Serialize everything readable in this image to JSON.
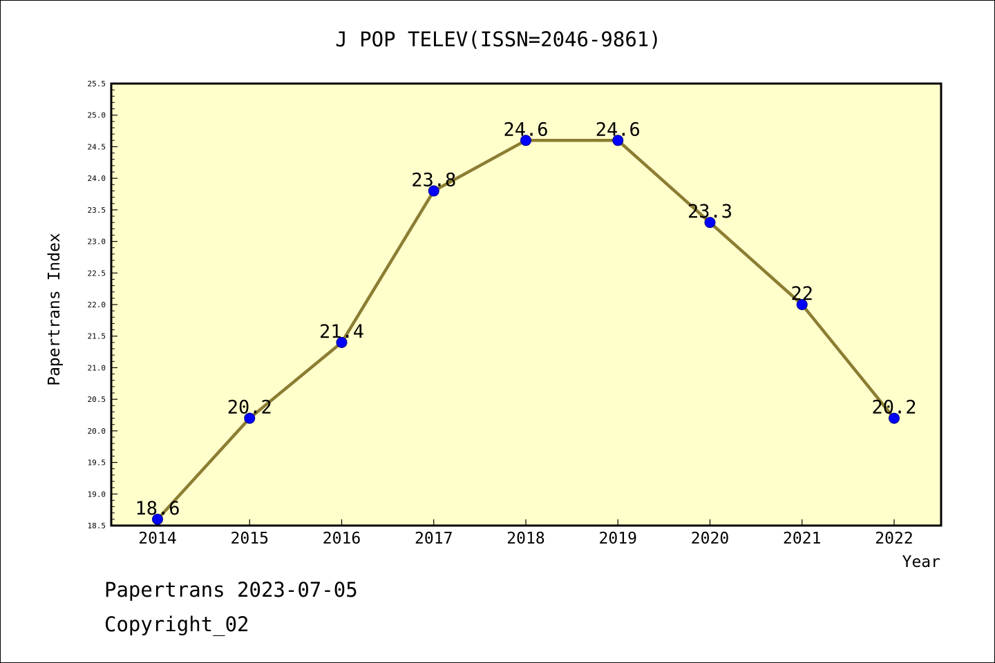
{
  "chart_data": {
    "type": "line",
    "title": "J POP TELEV(ISSN=2046-9861)",
    "xlabel": "Year",
    "ylabel": "Papertrans Index",
    "x": [
      "2014",
      "2015",
      "2016",
      "2017",
      "2018",
      "2019",
      "2020",
      "2021",
      "2022"
    ],
    "series": [
      {
        "values": [
          18.6,
          20.2,
          21.4,
          23.8,
          24.6,
          24.6,
          23.3,
          22,
          20.2
        ],
        "data_labels": [
          "18.6",
          "20.2",
          "21.4",
          "23.8",
          "24.6",
          "24.6",
          "23.3",
          "22",
          "20.2"
        ]
      }
    ],
    "ylim": [
      18.5,
      25.5
    ],
    "y_ticks": [
      "18.5",
      "19.0",
      "19.5",
      "20.0",
      "20.5",
      "21.0",
      "21.5",
      "22.0",
      "22.5",
      "23.0",
      "23.5",
      "24.0",
      "24.5",
      "25.0",
      "25.5"
    ],
    "grid": false,
    "legend": "none",
    "colors": {
      "plot_background": "#ffffcc",
      "line": "#8b7d32",
      "marker": "#0000ff",
      "axis": "#000000"
    }
  },
  "footer": {
    "date_line": "Papertrans 2023-07-05",
    "copyright_line": "Copyright_02"
  }
}
